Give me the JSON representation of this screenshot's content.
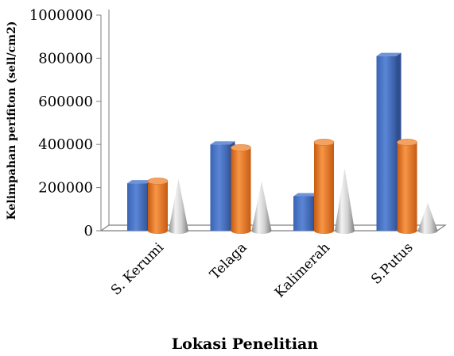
{
  "chart_data": {
    "type": "bar",
    "variant": "3d-clustered (cylinders, cone)",
    "title": "",
    "xlabel": "Lokasi Penelitian",
    "ylabel": "Kelimpahan perifiton (sell/cm2)",
    "ylim": [
      0,
      1000000
    ],
    "yticks": [
      "0",
      "200000",
      "400000",
      "600000",
      "800000",
      "1000000"
    ],
    "categories": [
      "S. Kerumi",
      "Telaga",
      "Kalimerah",
      "S.Putus"
    ],
    "series": [
      {
        "color": "#4472c4",
        "shape": "box",
        "values": [
          220000,
          400000,
          160000,
          810000
        ]
      },
      {
        "color": "#ed7d31",
        "shape": "cylinder",
        "values": [
          230000,
          385000,
          410000,
          410000
        ]
      },
      {
        "color": "#a5a5a5",
        "shape": "cone",
        "values": [
          240000,
          230000,
          290000,
          130000
        ]
      }
    ],
    "grid": false,
    "legend": "none"
  }
}
